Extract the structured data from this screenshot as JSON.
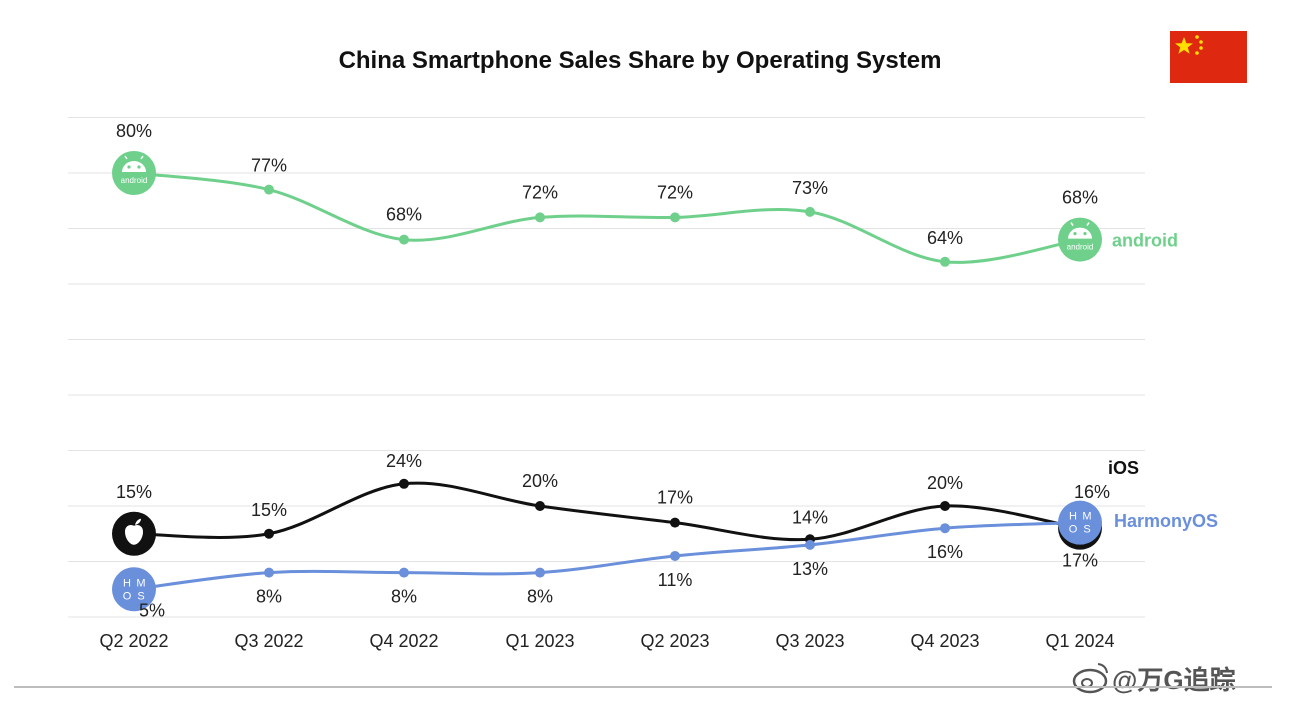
{
  "chart_data": {
    "type": "line",
    "title": "China Smartphone Sales Share by Operating System",
    "categories": [
      "Q2 2022",
      "Q3 2022",
      "Q4 2022",
      "Q1 2023",
      "Q2 2023",
      "Q3 2023",
      "Q4 2023",
      "Q1 2024"
    ],
    "ylim": [
      0,
      90
    ],
    "grid": true,
    "xlabel": "",
    "ylabel": "",
    "series": [
      {
        "key": "android",
        "name": "android",
        "color": "#6fd08c",
        "values": [
          80,
          77,
          68,
          72,
          72,
          73,
          64,
          68
        ],
        "labels": [
          "80%",
          "77%",
          "68%",
          "72%",
          "72%",
          "73%",
          "64%",
          "68%"
        ]
      },
      {
        "key": "ios",
        "name": "iOS",
        "color": "#111111",
        "values": [
          15,
          15,
          24,
          20,
          17,
          14,
          20,
          16
        ],
        "labels": [
          "15%",
          "15%",
          "24%",
          "20%",
          "17%",
          "14%",
          "20%",
          "16%"
        ]
      },
      {
        "key": "harmony",
        "name": "HarmonyOS",
        "color": "#6a8fdb",
        "values": [
          5,
          8,
          8,
          8,
          11,
          13,
          16,
          17
        ],
        "labels": [
          "5%",
          "8%",
          "8%",
          "8%",
          "11%",
          "13%",
          "16%",
          "17%"
        ]
      }
    ],
    "watermark": "@万G追踪",
    "icons": [
      "android-icon",
      "apple-icon",
      "harmonyos-icon",
      "china-flag-icon",
      "weibo-icon"
    ],
    "harmony_badge_text": "HMOS",
    "android_badge_text": "android"
  }
}
